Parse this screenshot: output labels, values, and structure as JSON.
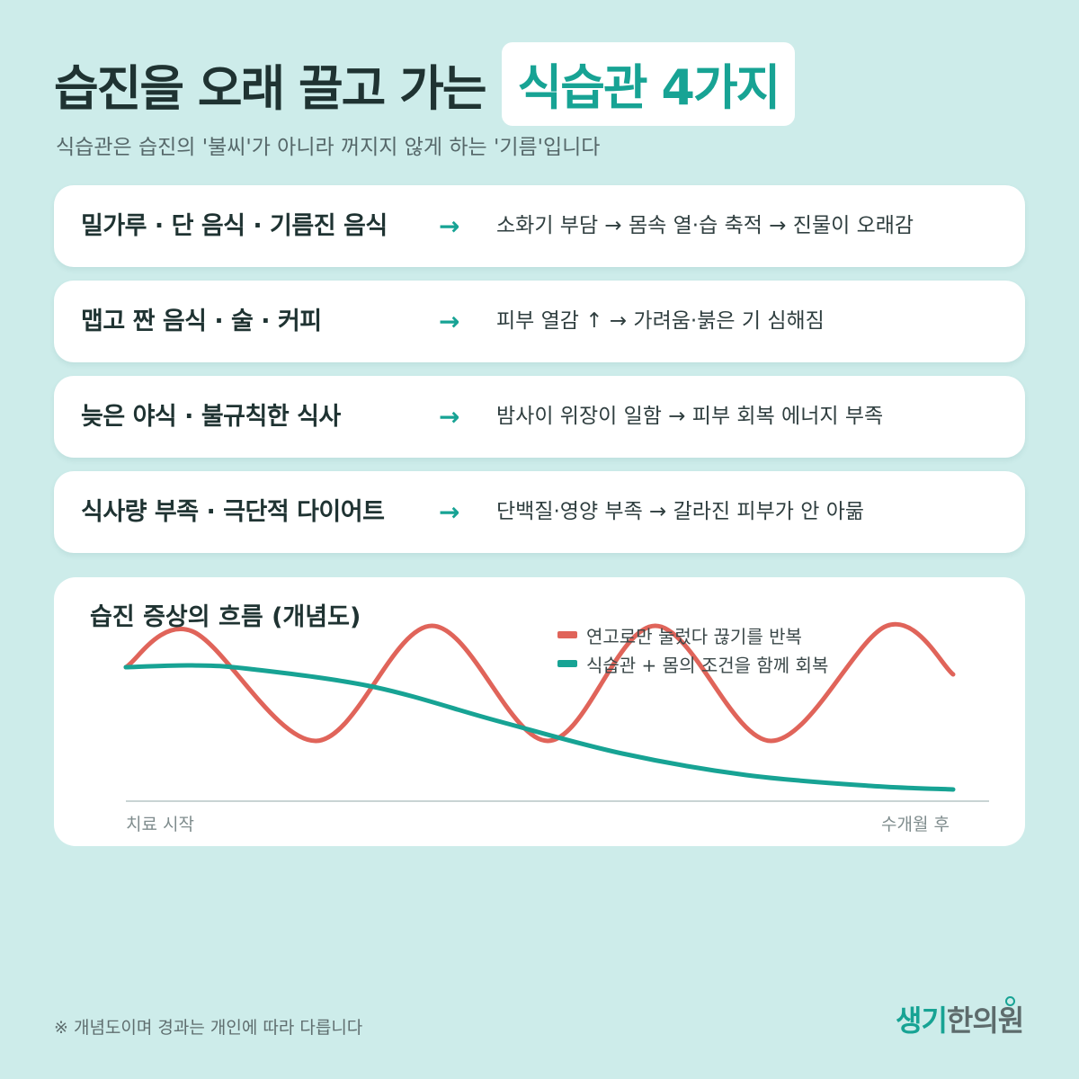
{
  "title": {
    "main": "습진을 오래 끌고 가는",
    "highlight": "식습관 4가지"
  },
  "subtitle": "식습관은 습진의 '불씨'가 아니라 꺼지지 않게 하는 '기름'입니다",
  "rows": [
    {
      "cause": "밀가루 · 단 음식 · 기름진 음식",
      "arrow": "→",
      "effect": "소화기 부담 → 몸속 열·습 축적 → 진물이 오래감"
    },
    {
      "cause": "맵고 짠 음식 · 술 · 커피",
      "arrow": "→",
      "effect": "피부 열감 ↑ → 가려움·붉은 기 심해짐"
    },
    {
      "cause": "늦은 야식 · 불규칙한 식사",
      "arrow": "→",
      "effect": "밤사이 위장이 일함 → 피부 회복 에너지 부족"
    },
    {
      "cause": "식사량 부족 · 극단적 다이어트",
      "arrow": "→",
      "effect": "단백질·영양 부족 → 갈라진 피부가 안 아묾"
    }
  ],
  "chart": {
    "title": "습진 증상의 흐름 (개념도)",
    "x_start_label": "치료 시작",
    "x_end_label": "수개월 후"
  },
  "chart_data": {
    "type": "line",
    "title": "습진 증상의 흐름 (개념도)",
    "xlabel": "",
    "ylabel": "",
    "x": [
      0,
      0.08,
      0.23,
      0.35,
      0.5,
      0.64,
      0.77,
      0.92,
      1.0
    ],
    "ylim": [
      0,
      1
    ],
    "grid": false,
    "legend_position": "top-right",
    "series": [
      {
        "name": "연고로만 눌렀다 끊기를 반복",
        "color": "#e0645a",
        "x": [
          0,
          0.08,
          0.23,
          0.37,
          0.51,
          0.64,
          0.78,
          0.92,
          1.0
        ],
        "values": [
          0.75,
          0.95,
          0.34,
          0.98,
          0.34,
          0.98,
          0.34,
          0.98,
          0.71
        ]
      },
      {
        "name": "식습관 + 몸의 조건을 함께 회복",
        "color": "#17a394",
        "x": [
          0,
          0.08,
          0.15,
          0.3,
          0.45,
          0.6,
          0.75,
          0.9,
          1.0
        ],
        "values": [
          0.75,
          0.76,
          0.74,
          0.64,
          0.45,
          0.27,
          0.15,
          0.09,
          0.07
        ]
      }
    ]
  },
  "footnote": "※ 개념도이며 경과는 개인에 따라 다릅니다",
  "logo": {
    "part1": "생기",
    "part2": "한의원"
  },
  "colors": {
    "accent": "#17a394",
    "red_line": "#e0645a",
    "background": "#cdecea"
  }
}
